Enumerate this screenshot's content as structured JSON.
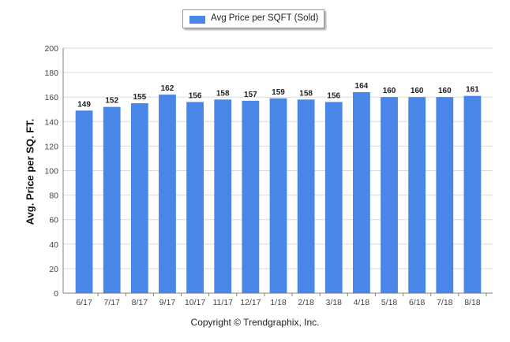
{
  "legend": {
    "label": "Avg Price per SQFT (Sold)",
    "swatch_color": "#4a86e8"
  },
  "footer": "Copyright © Trendgraphix, Inc.",
  "colors": {
    "bar": "#4a86e8",
    "grid": "#d9d9d9",
    "axis": "#7f7f7f"
  },
  "chart_data": {
    "type": "bar",
    "title": "",
    "xlabel": "",
    "ylabel": "Avg. Price per SQ. FT.",
    "ylim": [
      0,
      200
    ],
    "yticks": [
      0,
      20,
      40,
      60,
      80,
      100,
      120,
      140,
      160,
      180,
      200
    ],
    "grid": true,
    "legend_position": "top-center",
    "categories": [
      "6/17",
      "7/17",
      "8/17",
      "9/17",
      "10/17",
      "11/17",
      "12/17",
      "1/18",
      "2/18",
      "3/18",
      "4/18",
      "5/18",
      "6/18",
      "7/18",
      "8/18"
    ],
    "series": [
      {
        "name": "Avg Price per SQFT (Sold)",
        "values": [
          149,
          152,
          155,
          162,
          156,
          158,
          157,
          159,
          158,
          156,
          164,
          160,
          160,
          160,
          161
        ]
      }
    ]
  }
}
